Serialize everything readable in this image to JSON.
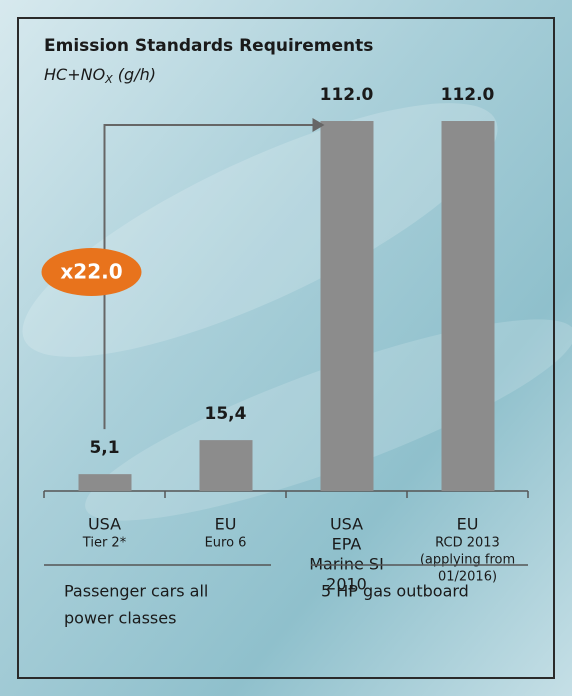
{
  "chart_data": {
    "type": "bar",
    "title": "Emission Standards Requirements",
    "subtitle_parts": [
      "HC+NO",
      "X",
      " (g/h)"
    ],
    "categories": [
      {
        "label": [
          "USA"
        ],
        "sublabel": [
          "Tier 2*"
        ]
      },
      {
        "label": [
          "EU"
        ],
        "sublabel": [
          "Euro 6"
        ]
      },
      {
        "label": [
          "USA",
          "EPA",
          "Marine SI",
          "2010"
        ],
        "sublabel": []
      },
      {
        "label": [
          "EU"
        ],
        "sublabel": [
          "RCD 2013",
          "(applying from",
          "01/2016)"
        ]
      }
    ],
    "values": [
      5.1,
      15.4,
      112.0,
      112.0
    ],
    "value_labels": [
      "5,1",
      "15,4",
      "112.0",
      "112.0"
    ],
    "color": "#8c8c8c",
    "groups": [
      {
        "label": [
          "Passenger cars all",
          "power classes"
        ],
        "span": [
          0,
          1
        ]
      },
      {
        "label": [
          "5 HP gas outboard"
        ],
        "span": [
          2,
          3
        ]
      }
    ],
    "annotation": {
      "text": "x22.0",
      "from": 0,
      "to": 2,
      "color": "#e8731c"
    }
  }
}
